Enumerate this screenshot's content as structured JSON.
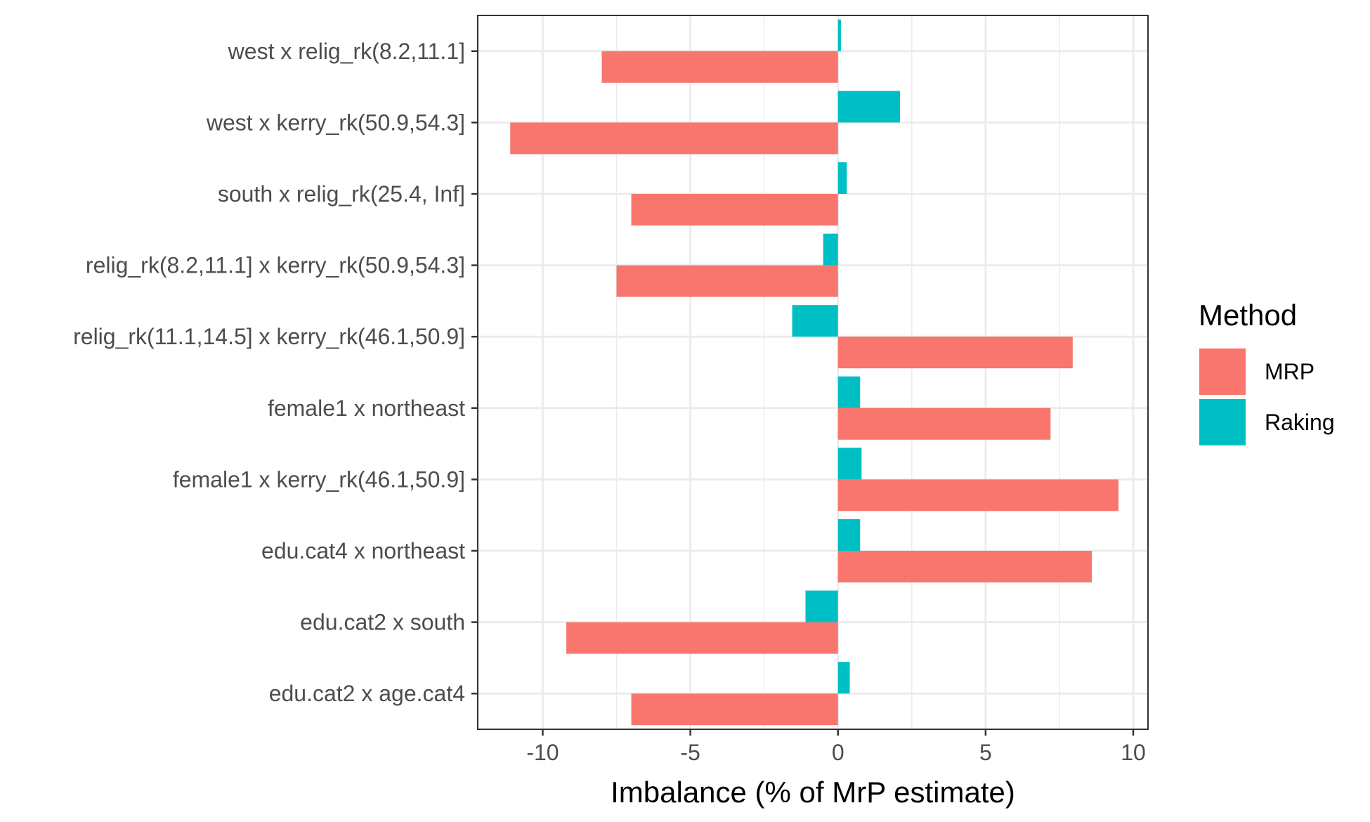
{
  "chart_data": {
    "type": "bar",
    "orientation": "horizontal",
    "categories": [
      "west x relig_rk(8.2,11.1]",
      "west x kerry_rk(50.9,54.3]",
      "south x relig_rk(25.4, Inf]",
      "relig_rk(8.2,11.1] x kerry_rk(50.9,54.3]",
      "relig_rk(11.1,14.5] x kerry_rk(46.1,50.9]",
      "female1 x northeast",
      "female1 x kerry_rk(46.1,50.9]",
      "edu.cat4 x northeast",
      "edu.cat2 x south",
      "edu.cat2 x age.cat4"
    ],
    "series": [
      {
        "name": "MRP",
        "color": "#F8766D",
        "values": [
          -8.0,
          -11.1,
          -7.0,
          -7.5,
          7.95,
          7.2,
          9.5,
          8.6,
          -9.2,
          -7.0
        ]
      },
      {
        "name": "Raking",
        "color": "#00BFC4",
        "values": [
          0.1,
          2.1,
          0.3,
          -0.5,
          -1.55,
          0.75,
          0.8,
          0.75,
          -1.1,
          0.4
        ]
      }
    ],
    "xlabel": "Imbalance (% of MrP estimate)",
    "ylabel": "",
    "xlim": [
      -12.2,
      10.5
    ],
    "xticks": [
      -10,
      -5,
      0,
      5,
      10
    ],
    "tick_labels": [
      "-10",
      "-5",
      "0",
      "5",
      "10"
    ],
    "grid": true,
    "legend": {
      "title": "Method",
      "position": "right"
    }
  }
}
